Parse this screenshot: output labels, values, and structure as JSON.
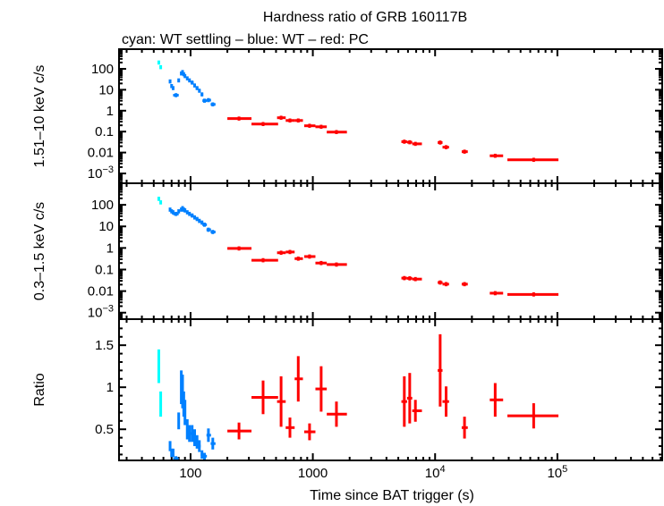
{
  "chart_data": {
    "type": "scatter",
    "title": "Hardness ratio of GRB 160117B",
    "subtitle": "cyan: WT settling – blue: WT – red: PC",
    "xlabel": "Time since BAT trigger (s)",
    "xscale": "log",
    "xlim": [
      26,
      720000
    ],
    "xticks": [
      {
        "v": 100,
        "t": "100"
      },
      {
        "v": 1000,
        "t": "1000"
      },
      {
        "v": 10000,
        "t": "10",
        "e": "4"
      },
      {
        "v": 100000,
        "t": "10",
        "e": "5"
      }
    ],
    "colors": {
      "wt_settling": "#00ffff",
      "wt": "#0080ff",
      "pc": "#ff0000"
    },
    "panels": [
      {
        "ylabel": "1.51–10 keV c/s",
        "yscale": "log",
        "ylim": [
          0.00034,
          870
        ],
        "yticks": [
          {
            "v": 100,
            "t": "100"
          },
          {
            "v": 10,
            "t": "10"
          },
          {
            "v": 1,
            "t": "1"
          },
          {
            "v": 0.1,
            "t": "0.1"
          },
          {
            "v": 0.01,
            "t": "0.01"
          },
          {
            "v": 0.001,
            "t": "10",
            "e": "−3"
          }
        ]
      },
      {
        "ylabel": "0.3–1.5 keV c/s",
        "yscale": "log",
        "ylim": [
          0.0005,
          1000
        ],
        "yticks": [
          {
            "v": 100,
            "t": "100"
          },
          {
            "v": 10,
            "t": "10"
          },
          {
            "v": 1,
            "t": "1"
          },
          {
            "v": 0.1,
            "t": "0.1"
          },
          {
            "v": 0.01,
            "t": "0.01"
          },
          {
            "v": 0.001,
            "t": "10",
            "e": "−3"
          }
        ]
      },
      {
        "ylabel": "Ratio",
        "yscale": "linear",
        "ylim": [
          0.13,
          1.81
        ],
        "yticks": [
          {
            "v": 0.5,
            "t": "0.5"
          },
          {
            "v": 1,
            "t": "1"
          },
          {
            "v": 1.5,
            "t": "1.5"
          }
        ]
      }
    ],
    "series": [
      {
        "mode": "wt_settling",
        "points": [
          {
            "x": 55,
            "xlo": 54,
            "xhi": 56,
            "hard": 200,
            "soft": 190,
            "ratio": 1.25,
            "rerr": 0.2
          },
          {
            "x": 57,
            "xlo": 56,
            "xhi": 58,
            "hard": 120,
            "soft": 130,
            "ratio": 0.8,
            "rerr": 0.15
          }
        ]
      },
      {
        "mode": "wt",
        "points": [
          {
            "x": 68,
            "xlo": 67,
            "xhi": 69,
            "hard": 25,
            "soft": 60,
            "ratio": 0.3,
            "rerr": 0.06
          },
          {
            "x": 70,
            "xlo": 69,
            "xhi": 71,
            "hard": 15,
            "soft": 50,
            "ratio": 0.22,
            "rerr": 0.05
          },
          {
            "x": 72,
            "xlo": 71,
            "xhi": 73,
            "hard": 12,
            "soft": 45,
            "ratio": 0.22,
            "rerr": 0.05
          },
          {
            "x": 76,
            "xlo": 72,
            "xhi": 80,
            "hard": 5.5,
            "soft": 38,
            "ratio": 0.15,
            "rerr": 0.03
          },
          {
            "x": 80,
            "xlo": 79,
            "xhi": 81,
            "hard": 28,
            "soft": 50,
            "ratio": 0.6,
            "rerr": 0.1
          },
          {
            "x": 84,
            "xlo": 83,
            "xhi": 85,
            "hard": 60,
            "soft": 60,
            "ratio": 1.0,
            "rerr": 0.2
          },
          {
            "x": 86,
            "xlo": 85,
            "xhi": 87,
            "hard": 70,
            "soft": 70,
            "ratio": 0.95,
            "rerr": 0.2
          },
          {
            "x": 88,
            "xlo": 87,
            "xhi": 89,
            "hard": 55,
            "soft": 60,
            "ratio": 0.8,
            "rerr": 0.15
          },
          {
            "x": 90,
            "xlo": 89,
            "xhi": 91,
            "hard": 45,
            "soft": 55,
            "ratio": 0.7,
            "rerr": 0.15
          },
          {
            "x": 94,
            "xlo": 92,
            "xhi": 96,
            "hard": 35,
            "soft": 45,
            "ratio": 0.5,
            "rerr": 0.12
          },
          {
            "x": 98,
            "xlo": 96,
            "xhi": 100,
            "hard": 28,
            "soft": 38,
            "ratio": 0.45,
            "rerr": 0.1
          },
          {
            "x": 103,
            "xlo": 100,
            "xhi": 106,
            "hard": 22,
            "soft": 32,
            "ratio": 0.45,
            "rerr": 0.1
          },
          {
            "x": 108,
            "xlo": 106,
            "xhi": 110,
            "hard": 16,
            "soft": 26,
            "ratio": 0.4,
            "rerr": 0.1
          },
          {
            "x": 113,
            "xlo": 110,
            "xhi": 116,
            "hard": 12,
            "soft": 22,
            "ratio": 0.35,
            "rerr": 0.08
          },
          {
            "x": 118,
            "xlo": 116,
            "xhi": 121,
            "hard": 9,
            "soft": 18,
            "ratio": 0.3,
            "rerr": 0.07
          },
          {
            "x": 124,
            "xlo": 121,
            "xhi": 127,
            "hard": 6,
            "soft": 15,
            "ratio": 0.2,
            "rerr": 0.05
          },
          {
            "x": 130,
            "xlo": 125,
            "xhi": 136,
            "hard": 3,
            "soft": 12,
            "ratio": 0.18,
            "rerr": 0.04
          },
          {
            "x": 140,
            "xlo": 135,
            "xhi": 147,
            "hard": 3.2,
            "soft": 7,
            "ratio": 0.43,
            "rerr": 0.08
          },
          {
            "x": 152,
            "xlo": 146,
            "xhi": 160,
            "hard": 2,
            "soft": 5.5,
            "ratio": 0.33,
            "rerr": 0.07
          }
        ]
      },
      {
        "mode": "pc",
        "points": [
          {
            "x": 249,
            "xlo": 200,
            "xhi": 315,
            "hard": 0.42,
            "soft": 0.95,
            "ratio": 0.48,
            "rerr": 0.1
          },
          {
            "x": 392,
            "xlo": 315,
            "xhi": 520,
            "hard": 0.23,
            "soft": 0.27,
            "ratio": 0.88,
            "rerr": 0.2
          },
          {
            "x": 550,
            "xlo": 510,
            "xhi": 600,
            "hard": 0.46,
            "soft": 0.6,
            "ratio": 0.83,
            "rerr": 0.3
          },
          {
            "x": 650,
            "xlo": 600,
            "xhi": 710,
            "hard": 0.34,
            "soft": 0.65,
            "ratio": 0.52,
            "rerr": 0.12
          },
          {
            "x": 760,
            "xlo": 710,
            "xhi": 830,
            "hard": 0.34,
            "soft": 0.32,
            "ratio": 1.1,
            "rerr": 0.27
          },
          {
            "x": 940,
            "xlo": 850,
            "xhi": 1050,
            "hard": 0.19,
            "soft": 0.4,
            "ratio": 0.47,
            "rerr": 0.1
          },
          {
            "x": 1170,
            "xlo": 1050,
            "xhi": 1300,
            "hard": 0.17,
            "soft": 0.2,
            "ratio": 0.98,
            "rerr": 0.27
          },
          {
            "x": 1560,
            "xlo": 1300,
            "xhi": 1900,
            "hard": 0.095,
            "soft": 0.17,
            "ratio": 0.68,
            "rerr": 0.15
          },
          {
            "x": 5600,
            "xlo": 5300,
            "xhi": 5900,
            "hard": 0.033,
            "soft": 0.04,
            "ratio": 0.83,
            "rerr": 0.3
          },
          {
            "x": 6200,
            "xlo": 5900,
            "xhi": 6500,
            "hard": 0.031,
            "soft": 0.039,
            "ratio": 0.87,
            "rerr": 0.3
          },
          {
            "x": 6900,
            "xlo": 6500,
            "xhi": 7800,
            "hard": 0.026,
            "soft": 0.036,
            "ratio": 0.72,
            "rerr": 0.13
          },
          {
            "x": 11000,
            "xlo": 10500,
            "xhi": 11500,
            "hard": 0.03,
            "soft": 0.025,
            "ratio": 1.2,
            "rerr": 0.43
          },
          {
            "x": 12300,
            "xlo": 11500,
            "xhi": 13000,
            "hard": 0.018,
            "soft": 0.021,
            "ratio": 0.83,
            "rerr": 0.18
          },
          {
            "x": 17400,
            "xlo": 16500,
            "xhi": 18500,
            "hard": 0.011,
            "soft": 0.021,
            "ratio": 0.52,
            "rerr": 0.13
          },
          {
            "x": 31000,
            "xlo": 28000,
            "xhi": 36000,
            "hard": 0.007,
            "soft": 0.008,
            "ratio": 0.85,
            "rerr": 0.2
          },
          {
            "x": 64000,
            "xlo": 39000,
            "xhi": 102000,
            "hard": 0.0045,
            "soft": 0.007,
            "ratio": 0.66,
            "rerr": 0.15
          }
        ]
      }
    ]
  }
}
